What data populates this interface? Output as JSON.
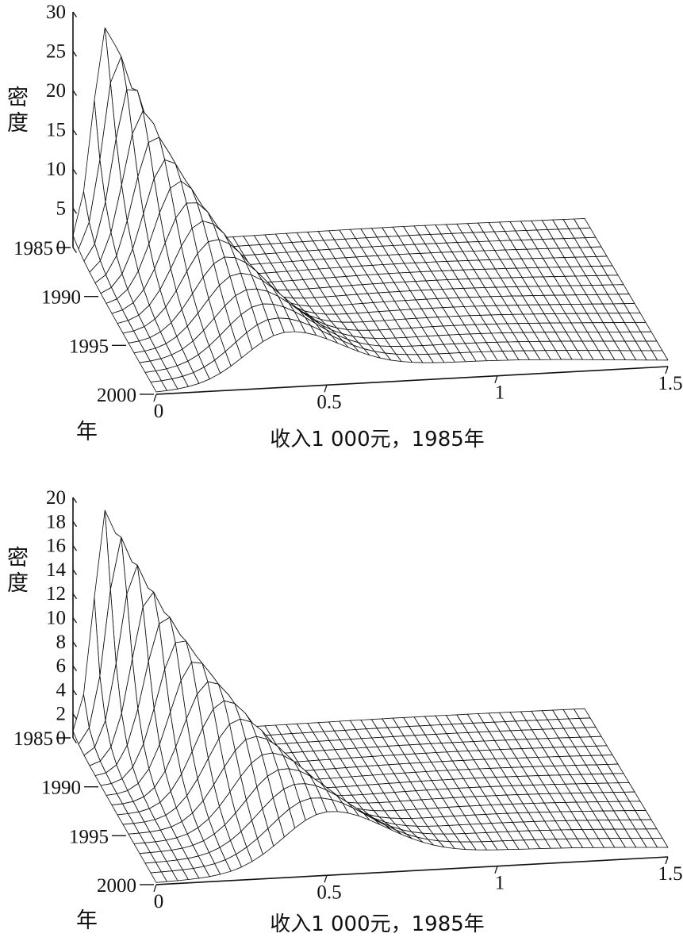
{
  "page": {
    "background": "#ffffff",
    "ink_color": "#111111"
  },
  "chart_data": [
    {
      "type": "surface",
      "title": "",
      "zlabel": "密度",
      "ylabel": "年",
      "xlabel": "收入1 000元，1985年",
      "x_range": [
        0,
        1.5
      ],
      "x_ticks": [
        0,
        0.5,
        1,
        1.5
      ],
      "x_tick_labels": [
        "0",
        "0.5",
        "1",
        "1.5"
      ],
      "year_range": [
        1985,
        2000
      ],
      "year_ticks": [
        1985,
        1990,
        1995,
        2000
      ],
      "z_range": [
        0,
        30
      ],
      "z_ticks": [
        0,
        5,
        10,
        15,
        20,
        25,
        30
      ],
      "grid": {
        "year_lines": 16,
        "income_lines": 49
      },
      "surface_model": {
        "main_peak": {
          "height_start": 28,
          "height_end": 6,
          "mode_start": 0.1,
          "mode_end": 0.38,
          "width_start": 0.055,
          "width_end": 0.16,
          "left_width_factor": 0.75
        },
        "tail": {
          "height_start": 0.4,
          "height_end": 2.0,
          "center": 0.9,
          "width": 0.45
        }
      }
    },
    {
      "type": "surface",
      "title": "",
      "zlabel": "密度",
      "ylabel": "年",
      "xlabel": "收入1 000元，1985年",
      "x_range": [
        0,
        1.5
      ],
      "x_ticks": [
        0,
        0.5,
        1,
        1.5
      ],
      "x_tick_labels": [
        "0",
        "0.5",
        "1",
        "1.5"
      ],
      "year_range": [
        1985,
        2000
      ],
      "year_ticks": [
        1985,
        1990,
        1995,
        2000
      ],
      "z_range": [
        0,
        20
      ],
      "z_ticks": [
        0,
        2,
        4,
        6,
        8,
        10,
        12,
        14,
        16,
        18,
        20
      ],
      "grid": {
        "year_lines": 16,
        "income_lines": 49
      },
      "surface_model": {
        "main_peak": {
          "height_start": 19,
          "height_end": 4.5,
          "mode_start": 0.1,
          "mode_end": 0.5,
          "width_start": 0.05,
          "width_end": 0.17,
          "left_width_factor": 0.75
        },
        "tail": {
          "height_start": 0.2,
          "height_end": 1.3,
          "center": 1.0,
          "width": 0.5
        }
      }
    }
  ]
}
